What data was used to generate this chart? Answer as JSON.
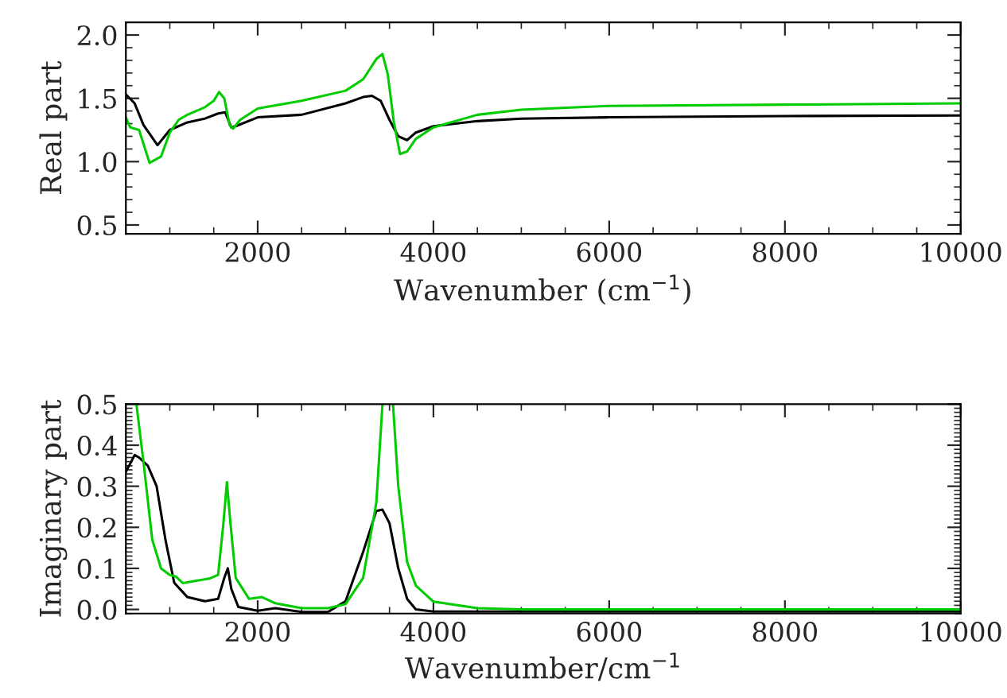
{
  "chart_data": [
    {
      "type": "line",
      "xlabel": "Wavenumber (cm$^{−1}$)",
      "ylabel": "Real part",
      "xlim": [
        500,
        10000
      ],
      "ylim": [
        0.43,
        2.1
      ],
      "xticks": [
        2000,
        4000,
        6000,
        8000,
        10000
      ],
      "yticks": [
        {
          "value": 0.5,
          "label": "0.5"
        },
        {
          "value": 1.0,
          "label": "1.0"
        },
        {
          "value": 1.5,
          "label": "1.5"
        },
        {
          "value": 2.0,
          "label": "2.0"
        }
      ],
      "grid": false,
      "legend": false,
      "series": [
        {
          "color": "#000000",
          "x": [
            500,
            600,
            700,
            860,
            1000,
            1200,
            1400,
            1550,
            1630,
            1700,
            1750,
            2000,
            2500,
            3000,
            3200,
            3300,
            3400,
            3500,
            3600,
            3700,
            3800,
            4000,
            4500,
            5000,
            6000,
            8000,
            10000
          ],
          "values": [
            1.53,
            1.46,
            1.29,
            1.13,
            1.25,
            1.31,
            1.34,
            1.38,
            1.39,
            1.27,
            1.28,
            1.35,
            1.37,
            1.46,
            1.51,
            1.52,
            1.48,
            1.33,
            1.2,
            1.17,
            1.23,
            1.28,
            1.32,
            1.34,
            1.35,
            1.36,
            1.365
          ]
        },
        {
          "color": "#00cc00",
          "x": [
            500,
            550,
            650,
            770,
            900,
            1000,
            1100,
            1200,
            1400,
            1500,
            1560,
            1620,
            1680,
            1720,
            1800,
            2000,
            2500,
            3000,
            3200,
            3350,
            3420,
            3480,
            3550,
            3620,
            3700,
            3800,
            4000,
            4500,
            5000,
            6000,
            8000,
            10000
          ],
          "values": [
            1.35,
            1.27,
            1.25,
            0.99,
            1.04,
            1.23,
            1.33,
            1.37,
            1.43,
            1.48,
            1.55,
            1.5,
            1.29,
            1.26,
            1.33,
            1.42,
            1.48,
            1.56,
            1.65,
            1.81,
            1.85,
            1.69,
            1.31,
            1.06,
            1.08,
            1.18,
            1.27,
            1.37,
            1.41,
            1.44,
            1.45,
            1.46
          ]
        }
      ]
    },
    {
      "type": "line",
      "xlabel": "Wavenumber/cm$^{−1}$",
      "ylabel": "Imaginary part",
      "xlim": [
        500,
        10000
      ],
      "ylim": [
        -0.01,
        0.5
      ],
      "xticks": [
        2000,
        4000,
        6000,
        8000,
        10000
      ],
      "yticks": [
        {
          "value": 0.0,
          "label": "0.0"
        },
        {
          "value": 0.1,
          "label": "0.1"
        },
        {
          "value": 0.2,
          "label": "0.2"
        },
        {
          "value": 0.3,
          "label": "0.3"
        },
        {
          "value": 0.4,
          "label": "0.4"
        },
        {
          "value": 0.5,
          "label": "0.5"
        }
      ],
      "grid": false,
      "legend": false,
      "series": [
        {
          "color": "#000000",
          "x": [
            500,
            600,
            650,
            750,
            850,
            950,
            1050,
            1200,
            1400,
            1550,
            1620,
            1660,
            1700,
            1780,
            2000,
            2200,
            2500,
            2800,
            3000,
            3200,
            3350,
            3420,
            3500,
            3600,
            3700,
            3800,
            4000,
            6000,
            10000
          ],
          "values": [
            0.335,
            0.376,
            0.37,
            0.35,
            0.3,
            0.17,
            0.065,
            0.03,
            0.02,
            0.026,
            0.077,
            0.1,
            0.05,
            0.006,
            -0.003,
            0.003,
            -0.006,
            -0.006,
            0.02,
            0.14,
            0.24,
            0.243,
            0.21,
            0.1,
            0.026,
            0.0,
            -0.005,
            -0.005,
            -0.005
          ]
        },
        {
          "color": "#00cc00",
          "x": [
            620,
            700,
            800,
            900,
            1000,
            1070,
            1150,
            1300,
            1450,
            1550,
            1610,
            1650,
            1690,
            1750,
            1900,
            2050,
            2200,
            2500,
            2800,
            3000,
            3200,
            3350,
            3420,
            3480,
            3540,
            3600,
            3700,
            3800,
            4000,
            4500,
            5000,
            10000
          ],
          "values": [
            0.5,
            0.36,
            0.17,
            0.1,
            0.084,
            0.08,
            0.064,
            0.07,
            0.075,
            0.084,
            0.21,
            0.31,
            0.21,
            0.077,
            0.026,
            0.03,
            0.015,
            0.003,
            0.003,
            0.013,
            0.077,
            0.26,
            0.5,
            null,
            0.5,
            0.3,
            0.116,
            0.058,
            0.019,
            0.003,
            0.0,
            0.0
          ]
        }
      ]
    }
  ]
}
